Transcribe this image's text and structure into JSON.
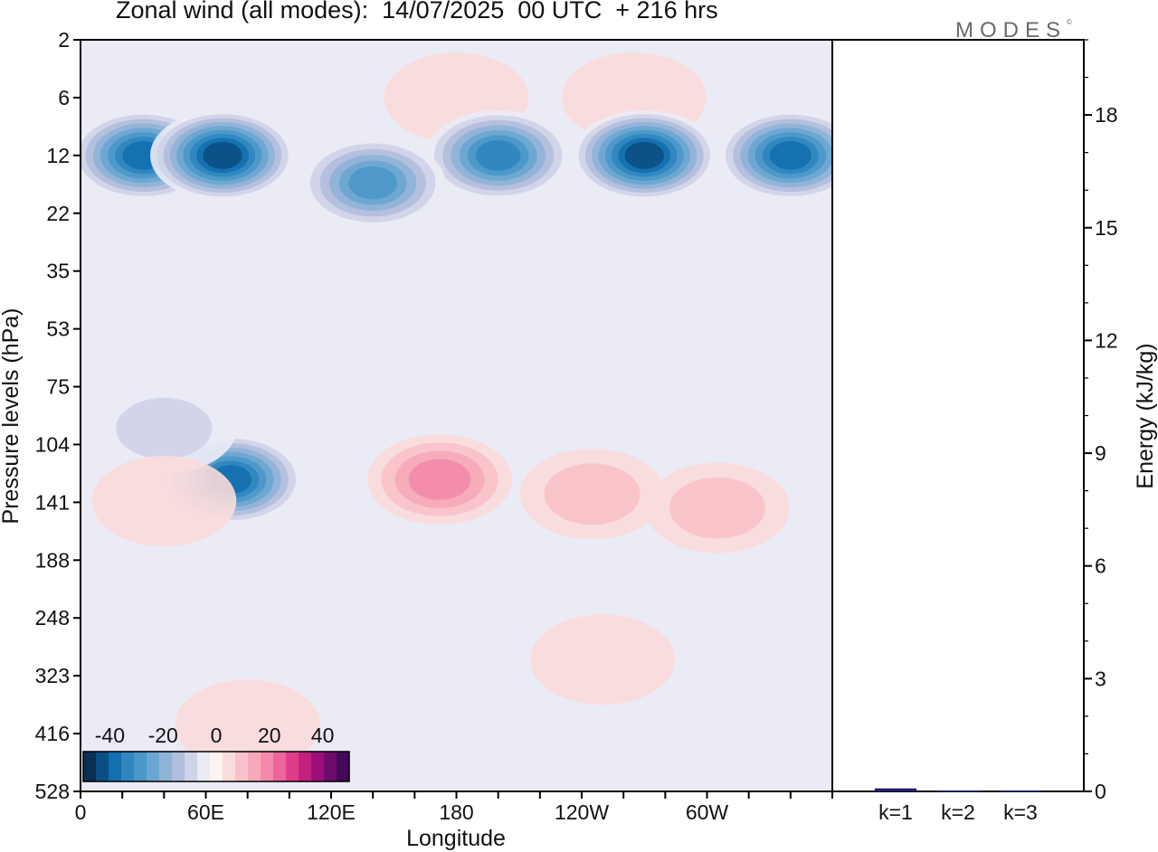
{
  "header": {
    "title": "Zonal wind (all modes):  14/07/2025  00 UTC  + 216 hrs",
    "brand": "MODES",
    "brand_mark": "©"
  },
  "chart_data": [
    {
      "type": "heatmap",
      "title": "Zonal wind (all modes):  14/07/2025  00 UTC  + 216 hrs",
      "xlabel": "Longitude",
      "ylabel": "Pressure levels (hPa)",
      "x_ticks": [
        "0",
        "60E",
        "120E",
        "180",
        "120W",
        "60W"
      ],
      "x_tick_values": [
        0,
        60,
        120,
        180,
        240,
        300
      ],
      "xlim": [
        0,
        360
      ],
      "y_ticks": [
        "2",
        "6",
        "12",
        "22",
        "35",
        "53",
        "75",
        "104",
        "141",
        "188",
        "248",
        "323",
        "416",
        "528"
      ],
      "colorbar": {
        "tick_labels": [
          "-40",
          "-20",
          "0",
          "20",
          "40"
        ],
        "tick_values": [
          -40,
          -20,
          0,
          20,
          40
        ],
        "range": [
          -50,
          50
        ],
        "colors": [
          "#0b2f52",
          "#0a4f84",
          "#136fae",
          "#2f86c0",
          "#4a97c9",
          "#6aa6d1",
          "#8fb3d7",
          "#b1bedd",
          "#cfd3e8",
          "#ebebf6",
          "#fdf3f1",
          "#fbdcdc",
          "#f8c2c9",
          "#f6a8b9",
          "#f389ab",
          "#ee6599",
          "#df3c8a",
          "#c4207f",
          "#9c0f78",
          "#6e0c6d",
          "#45095a"
        ]
      },
      "features": [
        {
          "lon": 180,
          "level": 6,
          "value": 5
        },
        {
          "lon": 265,
          "level": 6,
          "value": 2
        },
        {
          "lon": 30,
          "level": 12,
          "value": -40
        },
        {
          "lon": 68,
          "level": 12,
          "value": -45
        },
        {
          "lon": 270,
          "level": 12,
          "value": -45
        },
        {
          "lon": 340,
          "level": 12,
          "value": -40
        },
        {
          "lon": 200,
          "level": 12,
          "value": -35
        },
        {
          "lon": 140,
          "level": 16,
          "value": -32
        },
        {
          "lon": 72,
          "level": 125,
          "value": -42
        },
        {
          "lon": 40,
          "level": 95,
          "value": -12
        },
        {
          "lon": 172,
          "level": 125,
          "value": 20
        },
        {
          "lon": 245,
          "level": 135,
          "value": 10
        },
        {
          "lon": 305,
          "level": 145,
          "value": 10
        },
        {
          "lon": 40,
          "level": 140,
          "value": 3
        },
        {
          "lon": 80,
          "level": 400,
          "value": 5
        },
        {
          "lon": 250,
          "level": 300,
          "value": 4
        }
      ]
    },
    {
      "type": "bar",
      "categories": [
        "k=1",
        "k=2",
        "k=3"
      ],
      "values": [
        0.08,
        0.02,
        0.02
      ],
      "ylabel": "Energy (kJ/kg)",
      "y_ticks": [
        0,
        3,
        6,
        9,
        12,
        15,
        18
      ],
      "ylim": [
        0,
        20
      ],
      "bar_color": "#1a1f6e"
    }
  ]
}
